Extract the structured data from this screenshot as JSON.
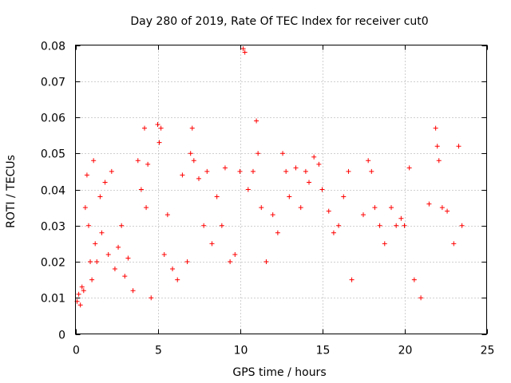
{
  "chart_data": {
    "type": "scatter",
    "title": "Day 280 of 2019, Rate Of TEC Index for receiver cut0",
    "xlabel": "GPS time / hours",
    "ylabel": "ROTI / TECUs",
    "xlim": [
      0,
      25
    ],
    "ylim": [
      0,
      0.08
    ],
    "xticks": [
      0,
      5,
      10,
      15,
      20,
      25
    ],
    "yticks": [
      0,
      0.01,
      0.02,
      0.03,
      0.04,
      0.05,
      0.06,
      0.07,
      0.08
    ],
    "ytick_labels": [
      "0",
      "0.01",
      "0.02",
      "0.03",
      "0.04",
      "0.05",
      "0.06",
      "0.07",
      "0.08"
    ],
    "xtick_labels": [
      "0",
      "5",
      "10",
      "15",
      "20",
      "25"
    ],
    "grid": true,
    "marker": "+",
    "color": "#ff0000",
    "series": [
      {
        "points": [
          [
            0.1,
            0.009
          ],
          [
            0.2,
            0.011
          ],
          [
            0.3,
            0.008
          ],
          [
            0.4,
            0.013
          ],
          [
            0.5,
            0.012
          ],
          [
            0.6,
            0.035
          ],
          [
            0.7,
            0.044
          ],
          [
            0.8,
            0.03
          ],
          [
            0.9,
            0.02
          ],
          [
            1.0,
            0.015
          ],
          [
            1.1,
            0.048
          ],
          [
            1.2,
            0.025
          ],
          [
            1.3,
            0.02
          ],
          [
            1.5,
            0.038
          ],
          [
            1.6,
            0.028
          ],
          [
            1.8,
            0.042
          ],
          [
            2.0,
            0.022
          ],
          [
            2.2,
            0.045
          ],
          [
            2.4,
            0.018
          ],
          [
            2.6,
            0.024
          ],
          [
            2.8,
            0.03
          ],
          [
            3.0,
            0.016
          ],
          [
            3.2,
            0.021
          ],
          [
            3.5,
            0.012
          ],
          [
            3.8,
            0.048
          ],
          [
            4.0,
            0.04
          ],
          [
            4.2,
            0.057
          ],
          [
            4.3,
            0.035
          ],
          [
            4.4,
            0.047
          ],
          [
            4.6,
            0.01
          ],
          [
            5.0,
            0.058
          ],
          [
            5.1,
            0.053
          ],
          [
            5.2,
            0.057
          ],
          [
            5.4,
            0.022
          ],
          [
            5.6,
            0.033
          ],
          [
            5.9,
            0.018
          ],
          [
            6.2,
            0.015
          ],
          [
            6.5,
            0.044
          ],
          [
            6.8,
            0.02
          ],
          [
            7.0,
            0.05
          ],
          [
            7.1,
            0.057
          ],
          [
            7.2,
            0.048
          ],
          [
            7.5,
            0.043
          ],
          [
            7.8,
            0.03
          ],
          [
            8.0,
            0.045
          ],
          [
            8.3,
            0.025
          ],
          [
            8.6,
            0.038
          ],
          [
            8.9,
            0.03
          ],
          [
            9.1,
            0.046
          ],
          [
            9.4,
            0.02
          ],
          [
            9.7,
            0.022
          ],
          [
            10.0,
            0.045
          ],
          [
            10.2,
            0.079
          ],
          [
            10.3,
            0.078
          ],
          [
            10.5,
            0.04
          ],
          [
            10.8,
            0.045
          ],
          [
            11.0,
            0.059
          ],
          [
            11.1,
            0.05
          ],
          [
            11.3,
            0.035
          ],
          [
            11.6,
            0.02
          ],
          [
            12.0,
            0.033
          ],
          [
            12.3,
            0.028
          ],
          [
            12.6,
            0.05
          ],
          [
            12.8,
            0.045
          ],
          [
            13.0,
            0.038
          ],
          [
            13.4,
            0.046
          ],
          [
            13.7,
            0.035
          ],
          [
            14.0,
            0.045
          ],
          [
            14.2,
            0.042
          ],
          [
            14.5,
            0.049
          ],
          [
            14.8,
            0.047
          ],
          [
            15.0,
            0.04
          ],
          [
            15.4,
            0.034
          ],
          [
            15.7,
            0.028
          ],
          [
            16.0,
            0.03
          ],
          [
            16.3,
            0.038
          ],
          [
            16.6,
            0.045
          ],
          [
            16.8,
            0.015
          ],
          [
            17.5,
            0.033
          ],
          [
            17.8,
            0.048
          ],
          [
            18.0,
            0.045
          ],
          [
            18.2,
            0.035
          ],
          [
            18.5,
            0.03
          ],
          [
            18.8,
            0.025
          ],
          [
            19.2,
            0.035
          ],
          [
            19.5,
            0.03
          ],
          [
            19.8,
            0.032
          ],
          [
            20.0,
            0.03
          ],
          [
            20.3,
            0.046
          ],
          [
            20.6,
            0.015
          ],
          [
            21.0,
            0.01
          ],
          [
            21.5,
            0.036
          ],
          [
            21.9,
            0.057
          ],
          [
            22.0,
            0.052
          ],
          [
            22.1,
            0.048
          ],
          [
            22.3,
            0.035
          ],
          [
            22.6,
            0.034
          ],
          [
            23.0,
            0.025
          ],
          [
            23.3,
            0.052
          ],
          [
            23.5,
            0.03
          ]
        ]
      }
    ]
  }
}
